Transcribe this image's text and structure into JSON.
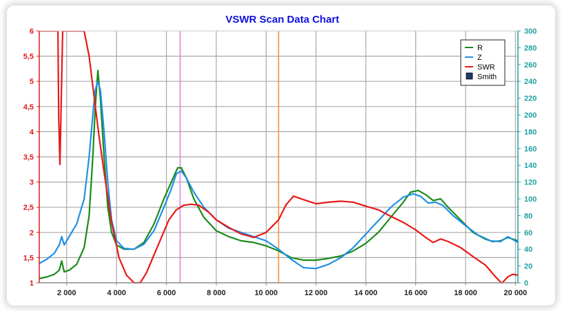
{
  "chart_data": {
    "type": "line",
    "title": "VSWR Scan Data Chart",
    "xlim": [
      900,
      20100
    ],
    "y_left": {
      "range": [
        1,
        6
      ],
      "ticks": [
        "1",
        "1,5",
        "2",
        "2,5",
        "3",
        "3,5",
        "4",
        "4,5",
        "5",
        "5,5",
        "6"
      ]
    },
    "y_right": {
      "range": [
        0,
        300
      ],
      "ticks": [
        "0",
        "20",
        "40",
        "60",
        "80",
        "100",
        "120",
        "140",
        "160",
        "180",
        "200",
        "220",
        "240",
        "260",
        "280",
        "300"
      ]
    },
    "x_ticks": [
      {
        "value": 2000,
        "label": "2 000"
      },
      {
        "value": 4000,
        "label": "4 000"
      },
      {
        "value": 6000,
        "label": "6 000"
      },
      {
        "value": 8000,
        "label": "8 000"
      },
      {
        "value": 10000,
        "label": "10 000"
      },
      {
        "value": 12000,
        "label": "12 000"
      },
      {
        "value": 14000,
        "label": "14 000"
      },
      {
        "value": 16000,
        "label": "16 000"
      },
      {
        "value": 18000,
        "label": "18 000"
      },
      {
        "value": 20000,
        "label": "20 000"
      }
    ],
    "markers": [
      {
        "x": 6550,
        "color": "#e27ee8"
      },
      {
        "x": 10500,
        "color": "#ff8c33"
      }
    ],
    "legend": {
      "position": "top-right",
      "entries": [
        {
          "label": "R",
          "color": "#1a8a1a",
          "type": "line"
        },
        {
          "label": "Z",
          "color": "#1e90e6",
          "type": "line"
        },
        {
          "label": "SWR",
          "color": "#e81818",
          "type": "line"
        },
        {
          "label": "Smith",
          "color": "#1f3a6b",
          "type": "box"
        }
      ]
    },
    "series": [
      {
        "name": "R",
        "axis": "right",
        "color": "#1a8a1a",
        "points": [
          [
            900,
            5
          ],
          [
            1200,
            7
          ],
          [
            1500,
            10
          ],
          [
            1700,
            15
          ],
          [
            1800,
            26
          ],
          [
            1900,
            13
          ],
          [
            2100,
            15
          ],
          [
            2400,
            22
          ],
          [
            2700,
            42
          ],
          [
            2900,
            80
          ],
          [
            3050,
            150
          ],
          [
            3150,
            210
          ],
          [
            3250,
            253
          ],
          [
            3350,
            220
          ],
          [
            3500,
            150
          ],
          [
            3650,
            90
          ],
          [
            3800,
            60
          ],
          [
            4000,
            45
          ],
          [
            4300,
            40
          ],
          [
            4700,
            40
          ],
          [
            5100,
            48
          ],
          [
            5500,
            70
          ],
          [
            5900,
            100
          ],
          [
            6200,
            120
          ],
          [
            6450,
            137
          ],
          [
            6600,
            137
          ],
          [
            6800,
            125
          ],
          [
            7100,
            100
          ],
          [
            7500,
            78
          ],
          [
            8000,
            62
          ],
          [
            8500,
            55
          ],
          [
            9000,
            50
          ],
          [
            9500,
            48
          ],
          [
            10000,
            44
          ],
          [
            10500,
            38
          ],
          [
            11000,
            30
          ],
          [
            11500,
            27
          ],
          [
            12000,
            27
          ],
          [
            12500,
            29
          ],
          [
            13000,
            32
          ],
          [
            13500,
            38
          ],
          [
            14000,
            47
          ],
          [
            14500,
            60
          ],
          [
            15000,
            78
          ],
          [
            15500,
            96
          ],
          [
            15800,
            108
          ],
          [
            16100,
            110
          ],
          [
            16400,
            105
          ],
          [
            16700,
            98
          ],
          [
            17000,
            100
          ],
          [
            17300,
            90
          ],
          [
            17800,
            75
          ],
          [
            18300,
            60
          ],
          [
            18800,
            52
          ],
          [
            19100,
            49
          ],
          [
            19400,
            50
          ],
          [
            19700,
            54
          ],
          [
            20100,
            50
          ]
        ]
      },
      {
        "name": "Z",
        "axis": "right",
        "color": "#1e90e6",
        "points": [
          [
            900,
            23
          ],
          [
            1200,
            28
          ],
          [
            1500,
            35
          ],
          [
            1700,
            45
          ],
          [
            1800,
            55
          ],
          [
            1900,
            45
          ],
          [
            2100,
            55
          ],
          [
            2400,
            70
          ],
          [
            2700,
            100
          ],
          [
            2900,
            150
          ],
          [
            3050,
            200
          ],
          [
            3150,
            230
          ],
          [
            3250,
            240
          ],
          [
            3350,
            230
          ],
          [
            3500,
            180
          ],
          [
            3650,
            120
          ],
          [
            3800,
            75
          ],
          [
            4000,
            50
          ],
          [
            4300,
            41
          ],
          [
            4700,
            40
          ],
          [
            5100,
            46
          ],
          [
            5500,
            62
          ],
          [
            5900,
            90
          ],
          [
            6200,
            112
          ],
          [
            6400,
            130
          ],
          [
            6600,
            133
          ],
          [
            6800,
            125
          ],
          [
            7100,
            108
          ],
          [
            7500,
            90
          ],
          [
            8000,
            75
          ],
          [
            8500,
            65
          ],
          [
            9000,
            60
          ],
          [
            9500,
            55
          ],
          [
            10000,
            50
          ],
          [
            10500,
            40
          ],
          [
            11000,
            28
          ],
          [
            11500,
            18
          ],
          [
            12000,
            17
          ],
          [
            12500,
            22
          ],
          [
            13000,
            30
          ],
          [
            13500,
            42
          ],
          [
            14000,
            58
          ],
          [
            14500,
            74
          ],
          [
            15000,
            90
          ],
          [
            15500,
            102
          ],
          [
            15900,
            106
          ],
          [
            16200,
            103
          ],
          [
            16500,
            95
          ],
          [
            16800,
            96
          ],
          [
            17100,
            92
          ],
          [
            17500,
            80
          ],
          [
            18000,
            68
          ],
          [
            18500,
            57
          ],
          [
            19000,
            50
          ],
          [
            19400,
            49
          ],
          [
            19700,
            55
          ],
          [
            20100,
            48
          ]
        ]
      },
      {
        "name": "SWR",
        "axis": "left",
        "color": "#e81818",
        "points": [
          [
            900,
            6
          ],
          [
            1650,
            6
          ],
          [
            1680,
            4.3
          ],
          [
            1730,
            3.35
          ],
          [
            1780,
            4.6
          ],
          [
            1840,
            6
          ],
          [
            2700,
            6
          ],
          [
            2900,
            5.5
          ],
          [
            3100,
            4.7
          ],
          [
            3300,
            3.9
          ],
          [
            3500,
            3.2
          ],
          [
            3800,
            2.2
          ],
          [
            4100,
            1.5
          ],
          [
            4400,
            1.15
          ],
          [
            4700,
            1.0
          ],
          [
            4950,
            1.0
          ],
          [
            5200,
            1.2
          ],
          [
            5500,
            1.55
          ],
          [
            5800,
            1.9
          ],
          [
            6100,
            2.25
          ],
          [
            6400,
            2.45
          ],
          [
            6700,
            2.54
          ],
          [
            7000,
            2.56
          ],
          [
            7300,
            2.54
          ],
          [
            7700,
            2.4
          ],
          [
            8000,
            2.25
          ],
          [
            8500,
            2.1
          ],
          [
            9000,
            1.97
          ],
          [
            9500,
            1.9
          ],
          [
            10000,
            2.0
          ],
          [
            10500,
            2.25
          ],
          [
            10800,
            2.55
          ],
          [
            11100,
            2.72
          ],
          [
            11500,
            2.65
          ],
          [
            12000,
            2.57
          ],
          [
            12500,
            2.6
          ],
          [
            13000,
            2.62
          ],
          [
            13500,
            2.6
          ],
          [
            14000,
            2.52
          ],
          [
            14500,
            2.45
          ],
          [
            15000,
            2.32
          ],
          [
            15500,
            2.2
          ],
          [
            16000,
            2.05
          ],
          [
            16400,
            1.9
          ],
          [
            16700,
            1.8
          ],
          [
            17000,
            1.87
          ],
          [
            17300,
            1.82
          ],
          [
            17800,
            1.7
          ],
          [
            18300,
            1.52
          ],
          [
            18800,
            1.35
          ],
          [
            19200,
            1.12
          ],
          [
            19450,
            0.99
          ],
          [
            19700,
            1.12
          ],
          [
            19900,
            1.17
          ],
          [
            20100,
            1.15
          ]
        ]
      }
    ]
  }
}
